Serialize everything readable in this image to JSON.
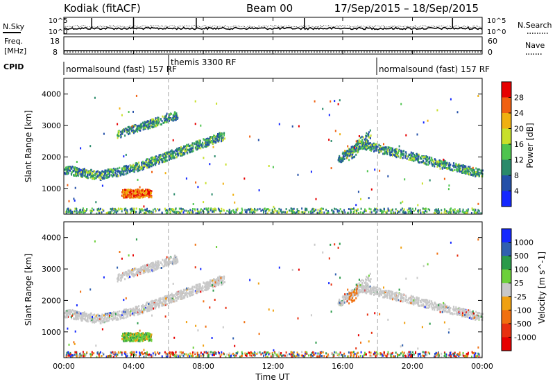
{
  "header": {
    "station": "Kodiak (fitACF)",
    "beam": "Beam 00",
    "dates": "17/Sep/2015 – 18/Sep/2015"
  },
  "noise_panel": {
    "left_label": "N.Sky",
    "right_label": "N.Search",
    "y_top": "10^5",
    "y_bottom": "10^0",
    "y_top_right": "10^5",
    "y_bottom_right": "10^0"
  },
  "freq_panel": {
    "left_label_1": "Freq.",
    "left_label_2": "[MHz]",
    "y_top": "18",
    "y_bottom": "8",
    "right_label": "Nave",
    "y_top_right": "60",
    "y_bottom_right": "0"
  },
  "cpid_panel": {
    "label": "CPID",
    "modes": [
      {
        "text": "normalsound (fast) 157 RF",
        "start_h": 0,
        "end_h": 6
      },
      {
        "text": "themis 3300 RF",
        "start_h": 6,
        "end_h": 18
      },
      {
        "text": "normalsound (fast) 157 RF",
        "start_h": 18,
        "end_h": 24
      }
    ]
  },
  "x_axis": {
    "label": "Time UT",
    "ticks": [
      "00:00",
      "04:00",
      "08:00",
      "12:00",
      "16:00",
      "20:00",
      "00:00"
    ],
    "range_hours": [
      0,
      24
    ],
    "mode_change_hours": [
      6,
      18
    ]
  },
  "power_colorbar": {
    "label": "Power [dB]",
    "ticks": [
      "4",
      "8",
      "12",
      "16",
      "20",
      "24",
      "28"
    ],
    "colors": [
      "#1428ff",
      "#2450a8",
      "#2a8a6a",
      "#4ec44e",
      "#c8e02a",
      "#f0b010",
      "#f06010",
      "#e60000"
    ]
  },
  "velocity_colorbar": {
    "label": "Velocity [m s^-1]",
    "ticks": [
      "1000",
      "500",
      "100",
      "25",
      "-25",
      "-100",
      "-500",
      "-1000"
    ],
    "colors": [
      "#1428ff",
      "#3060b0",
      "#2a9a4a",
      "#6cd03a",
      "#c8c8c8",
      "#f0a010",
      "#f07010",
      "#e83010",
      "#e60000"
    ]
  },
  "chart_data": [
    {
      "type": "line",
      "title": "",
      "xlabel": "",
      "ylabel": "N.Sky",
      "ylabel_right": "N.Search",
      "y_scale": "log",
      "ylim": [
        1,
        100000
      ],
      "series": [
        {
          "values": "noise roughly constant near 10^3 with spikes near 01:30, 04:00, 07:40, 13:50, 22:20"
        }
      ]
    },
    {
      "type": "line",
      "title": "",
      "xlabel": "",
      "ylabel": "Freq. [MHz]",
      "ylabel_right": "Nave",
      "ylim": [
        8,
        18
      ],
      "series": [
        {
          "values": "frequency constant near 10.8 MHz; Nave dotted near 17"
        }
      ]
    },
    {
      "type": "heatmap",
      "title": "",
      "xlabel": "",
      "ylabel": "Slant Range [km]",
      "x_range_hours": [
        0,
        24
      ],
      "y_ticks": [
        1000,
        2000,
        3000,
        4000
      ],
      "ylim": [
        180,
        4500
      ],
      "colorbar": "Power [dB]",
      "colorbar_ticks": [
        4,
        8,
        12,
        16,
        20,
        24,
        28
      ],
      "features": [
        {
          "x_hours": [
            0,
            9.2
          ],
          "range_km": [
            1400,
            2700
          ],
          "power_db": 12,
          "description": "main band: 1600 km at 00:00 descending to 1400 km at 02:00, rising to ~2650 km at 09:00"
        },
        {
          "x_hours": [
            3.0,
            6.5
          ],
          "range_km": [
            2700,
            3400
          ],
          "power_db": 10,
          "description": "upper band 2650-3350 km"
        },
        {
          "x_hours": [
            3.3,
            5.0
          ],
          "range_km": [
            700,
            1000
          ],
          "power_db": 28,
          "description": "strong near-range echoes ~800 km"
        },
        {
          "x_hours": [
            15.7,
            24
          ],
          "range_km": [
            1400,
            2400
          ],
          "power_db": 10,
          "description": "evening band from ~2400 km at 17:00 descending to ~1450 km at 24:00"
        },
        {
          "x_hours": [
            0,
            24
          ],
          "range_km": [
            180,
            400
          ],
          "power_db": 14,
          "description": "near-range ground scatter"
        }
      ]
    },
    {
      "type": "heatmap",
      "title": "",
      "xlabel": "Time UT",
      "ylabel": "Slant Range [km]",
      "x_range_hours": [
        0,
        24
      ],
      "y_ticks": [
        1000,
        2000,
        3000,
        4000
      ],
      "ylim": [
        180,
        4500
      ],
      "colorbar": "Velocity [m s^-1]",
      "colorbar_ticks": [
        1000,
        500,
        100,
        25,
        -25,
        -100,
        -500,
        -1000
      ],
      "features": [
        {
          "x_hours": [
            0,
            9.2
          ],
          "range_km": [
            1400,
            2700
          ],
          "velocity": 0,
          "description": "main band near zero velocity (grey)"
        },
        {
          "x_hours": [
            3.0,
            6.5
          ],
          "range_km": [
            2700,
            3400
          ],
          "velocity": 0,
          "description": "upper band near zero velocity"
        },
        {
          "x_hours": [
            3.3,
            5.0
          ],
          "range_km": [
            700,
            1000
          ],
          "velocity": 150,
          "description": "near-range echoes positive (green/blue) mix"
        },
        {
          "x_hours": [
            15.7,
            24
          ],
          "range_km": [
            1400,
            2400
          ],
          "velocity": 0,
          "description": "evening band near zero velocity, orange onset ~16:30"
        },
        {
          "x_hours": [
            0,
            24
          ],
          "range_km": [
            180,
            400
          ],
          "velocity": 50,
          "description": "near-range scatter mixed"
        }
      ]
    }
  ]
}
